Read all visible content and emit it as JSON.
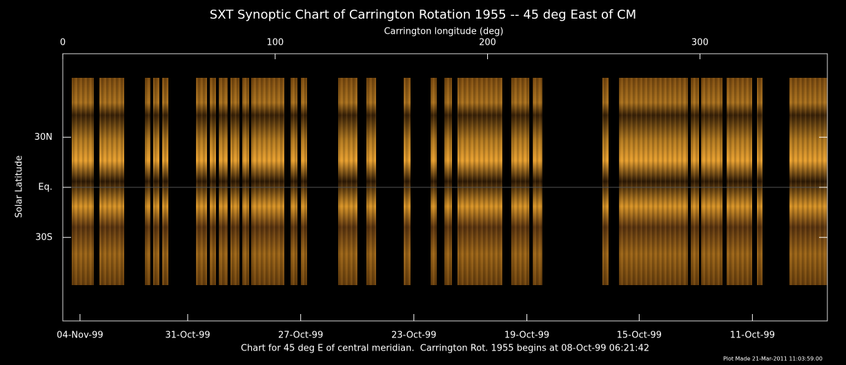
{
  "chart_data": {
    "type": "image",
    "title": "SXT Synoptic Chart of Carrington Rotation 1955 -- 45 deg East of CM",
    "xlabel": "Carrington longitude (deg)",
    "ylabel": "Solar Latitude",
    "xlim": [
      0,
      360
    ],
    "xticks": [
      0,
      100,
      200,
      300
    ],
    "ylim": [
      -80,
      80
    ],
    "yticks": [
      {
        "value": 30,
        "label": "30N"
      },
      {
        "value": 0,
        "label": "Eq."
      },
      {
        "value": -30,
        "label": "30S"
      }
    ],
    "x2ticks": [
      {
        "value": 8.1,
        "label": "04-Nov-99"
      },
      {
        "value": 58.8,
        "label": "31-Oct-99"
      },
      {
        "value": 112,
        "label": "27-Oct-99"
      },
      {
        "value": 165.3,
        "label": "23-Oct-99"
      },
      {
        "value": 218.5,
        "label": "19-Oct-99"
      },
      {
        "value": 271.4,
        "label": "15-Oct-99"
      },
      {
        "value": 324.7,
        "label": "11-Oct-99"
      }
    ],
    "caption": "Chart for 45 deg E of central meridian.  Carrington Rot. 1955 begins at 08-Oct-99 06:21:42",
    "footer": "Plot Made 21-Mar-2011 11:03:59.00"
  }
}
